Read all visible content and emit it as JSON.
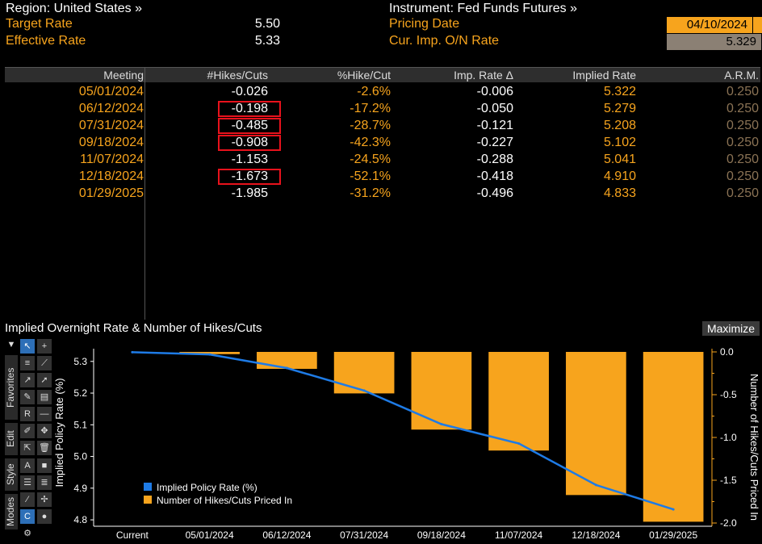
{
  "header": {
    "region_label": "Region: United States »",
    "target_rate_label": "Target Rate",
    "target_rate_value": "5.50",
    "effective_rate_label": "Effective Rate",
    "effective_rate_value": "5.33",
    "instrument_label": "Instrument: Fed Funds Futures »",
    "pricing_date_label": "Pricing Date",
    "pricing_date_value": "04/10/2024",
    "cur_imp_label": "Cur. Imp. O/N Rate",
    "cur_imp_value": "5.329"
  },
  "table": {
    "columns": [
      "Meeting",
      "#Hikes/Cuts",
      "%Hike/Cut",
      "Imp. Rate Δ",
      "Implied Rate",
      "A.R.M."
    ],
    "rows": [
      {
        "meeting": "05/01/2024",
        "hikes": "-0.026",
        "pct": "-2.6%",
        "imp_delta": "-0.006",
        "implied": "5.322",
        "arm": "0.250",
        "highlight": false
      },
      {
        "meeting": "06/12/2024",
        "hikes": "-0.198",
        "pct": "-17.2%",
        "imp_delta": "-0.050",
        "implied": "5.279",
        "arm": "0.250",
        "highlight": true
      },
      {
        "meeting": "07/31/2024",
        "hikes": "-0.485",
        "pct": "-28.7%",
        "imp_delta": "-0.121",
        "implied": "5.208",
        "arm": "0.250",
        "highlight": true
      },
      {
        "meeting": "09/18/2024",
        "hikes": "-0.908",
        "pct": "-42.3%",
        "imp_delta": "-0.227",
        "implied": "5.102",
        "arm": "0.250",
        "highlight": true
      },
      {
        "meeting": "11/07/2024",
        "hikes": "-1.153",
        "pct": "-24.5%",
        "imp_delta": "-0.288",
        "implied": "5.041",
        "arm": "0.250",
        "highlight": false
      },
      {
        "meeting": "12/18/2024",
        "hikes": "-1.673",
        "pct": "-52.1%",
        "imp_delta": "-0.418",
        "implied": "4.910",
        "arm": "0.250",
        "highlight": true
      },
      {
        "meeting": "01/29/2025",
        "hikes": "-1.985",
        "pct": "-31.2%",
        "imp_delta": "-0.496",
        "implied": "4.833",
        "arm": "0.250",
        "highlight": false
      }
    ]
  },
  "chart_panel": {
    "title": "Implied Overnight Rate & Number of Hikes/Cuts",
    "maximize_label": "Maximize",
    "tabs": [
      "Favorites",
      "Edit",
      "Style",
      "Modes"
    ]
  },
  "chart_data": {
    "type": "bar+line",
    "categories": [
      "Current",
      "05/01/2024",
      "06/12/2024",
      "07/31/2024",
      "09/18/2024",
      "11/07/2024",
      "12/18/2024",
      "01/29/2025"
    ],
    "series": [
      {
        "name": "Implied Policy Rate (%)",
        "type": "line",
        "axis": "left",
        "color": "#1e7be6",
        "values": [
          5.329,
          5.322,
          5.279,
          5.208,
          5.102,
          5.041,
          4.91,
          4.833
        ]
      },
      {
        "name": "Number of Hikes/Cuts Priced In",
        "type": "bar",
        "axis": "right",
        "color": "#f7a41d",
        "values": [
          null,
          -0.026,
          -0.198,
          -0.485,
          -0.908,
          -1.153,
          -1.673,
          -1.985
        ]
      }
    ],
    "ylabel_left": "Implied Policy Rate (%)",
    "ylabel_right": "Number of Hikes/Cuts Priced In",
    "ylim_left": [
      4.79,
      5.33
    ],
    "ylim_right": [
      -2.0,
      0.0
    ],
    "yticks_left": [
      "4.8",
      "4.9",
      "5.0",
      "5.1",
      "5.2",
      "5.3"
    ],
    "yticks_right": [
      "0.0",
      "-0.5",
      "-1.0",
      "-1.5",
      "-2.0"
    ],
    "legend_position": "bottom-left",
    "grid": false
  }
}
